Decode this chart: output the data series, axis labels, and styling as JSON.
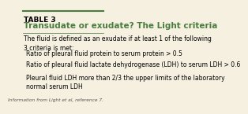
{
  "background_color": "#f5f0e0",
  "table_label": "TABLE 3",
  "title": "Transudate or exudate? The Light criteria",
  "body_intro": "The fluid is defined as an exudate if at least 1 of the following\n3 criteria is met:",
  "bullets": [
    "Ratio of pleural fluid protein to serum protein > 0.5",
    "Ratio of pleural fluid lactate dehydrogenase (LDH) to serum LDH > 0.6",
    "Pleural fluid LDH more than 2/3 the upper limits of the laboratory\nnormal serum LDH"
  ],
  "footer": "Information from Light et al, reference 7.",
  "table_label_color": "#000000",
  "title_color": "#4a7c3f",
  "body_color": "#000000",
  "footer_color": "#555555",
  "top_border_color": "#4a7c3f",
  "title_fontsize": 7.5,
  "table_label_fontsize": 6.5,
  "body_fontsize": 5.5,
  "footer_fontsize": 4.2,
  "bullet_indent": 0.06
}
